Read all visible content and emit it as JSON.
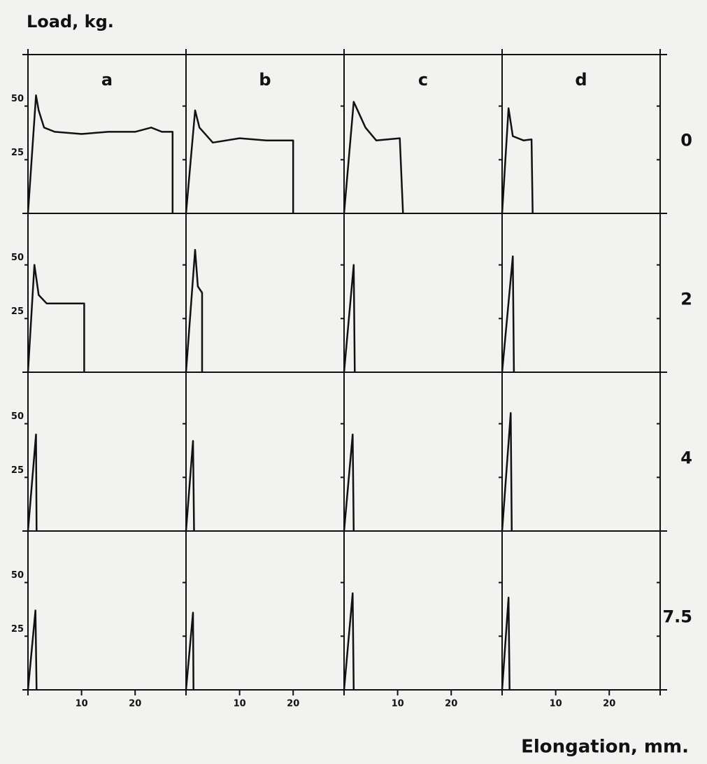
{
  "y_axis_label": "Load, kg.",
  "x_axis_label": "Elongation, mm.",
  "column_labels": [
    "a",
    "b",
    "c",
    "d"
  ],
  "row_labels": [
    "0",
    "2",
    "4",
    "7.5"
  ],
  "chart_data": [
    {
      "type": "line",
      "x": [
        0,
        1.5,
        2,
        3,
        5,
        10,
        15,
        20,
        23,
        25,
        27,
        27
      ],
      "values": [
        0,
        55,
        48,
        40,
        38,
        37,
        38,
        38,
        40,
        38,
        38,
        0
      ],
      "xlim": [
        0,
        29.5
      ],
      "ylim": [
        0,
        74
      ],
      "yticks": [
        25,
        50
      ],
      "color": "#111111"
    },
    {
      "type": "line",
      "x": [
        0,
        1.7,
        2.5,
        5,
        10,
        15,
        20,
        20
      ],
      "values": [
        0,
        48,
        40,
        33,
        35,
        34,
        34,
        0
      ],
      "xlim": [
        0,
        29.5
      ],
      "ylim": [
        0,
        74
      ],
      "yticks": [
        25,
        50
      ],
      "color": "#111111"
    },
    {
      "type": "line",
      "x": [
        0,
        1.8,
        4,
        6,
        10.4,
        11
      ],
      "values": [
        0,
        52,
        40,
        34,
        35,
        0
      ],
      "xlim": [
        0,
        29.5
      ],
      "ylim": [
        0,
        74
      ],
      "yticks": [
        25,
        50
      ],
      "color": "#111111"
    },
    {
      "type": "line",
      "x": [
        0,
        1.2,
        2,
        4,
        5.5,
        5.7
      ],
      "values": [
        0,
        49,
        36,
        34,
        34.5,
        0
      ],
      "xlim": [
        0,
        29.5
      ],
      "ylim": [
        0,
        74
      ],
      "yticks": [
        25,
        50
      ],
      "color": "#111111"
    },
    {
      "type": "line",
      "x": [
        0,
        1.2,
        2,
        3.5,
        10.5,
        10.5
      ],
      "values": [
        0,
        50,
        36,
        32,
        32,
        0
      ],
      "xlim": [
        0,
        29.5
      ],
      "ylim": [
        0,
        74
      ],
      "yticks": [
        25,
        50
      ],
      "color": "#111111"
    },
    {
      "type": "line",
      "x": [
        0,
        1.7,
        2.2,
        3,
        3
      ],
      "values": [
        0,
        57,
        40,
        37,
        0
      ],
      "xlim": [
        0,
        29.5
      ],
      "ylim": [
        0,
        74
      ],
      "yticks": [
        25,
        50
      ],
      "color": "#111111"
    },
    {
      "type": "line",
      "x": [
        0,
        1.8,
        2
      ],
      "values": [
        0,
        50,
        0
      ],
      "xlim": [
        0,
        29.5
      ],
      "ylim": [
        0,
        74
      ],
      "yticks": [
        25,
        50
      ],
      "color": "#111111"
    },
    {
      "type": "line",
      "x": [
        0,
        2,
        2.2
      ],
      "values": [
        0,
        54,
        0
      ],
      "xlim": [
        0,
        29.5
      ],
      "ylim": [
        0,
        74
      ],
      "yticks": [
        25,
        50
      ],
      "color": "#111111"
    },
    {
      "type": "line",
      "x": [
        0,
        1.5,
        1.6
      ],
      "values": [
        0,
        45,
        0
      ],
      "xlim": [
        0,
        29.5
      ],
      "ylim": [
        0,
        74
      ],
      "yticks": [
        25,
        50
      ],
      "color": "#111111"
    },
    {
      "type": "line",
      "x": [
        0,
        1.3,
        1.5
      ],
      "values": [
        0,
        42,
        0
      ],
      "xlim": [
        0,
        29.5
      ],
      "ylim": [
        0,
        74
      ],
      "yticks": [
        25,
        50
      ],
      "color": "#111111"
    },
    {
      "type": "line",
      "x": [
        0,
        1.6,
        1.8
      ],
      "values": [
        0,
        45,
        0
      ],
      "xlim": [
        0,
        29.5
      ],
      "ylim": [
        0,
        74
      ],
      "yticks": [
        25,
        50
      ],
      "color": "#111111"
    },
    {
      "type": "line",
      "x": [
        0,
        1.6,
        1.8
      ],
      "values": [
        0,
        55,
        0
      ],
      "xlim": [
        0,
        29.5
      ],
      "ylim": [
        0,
        74
      ],
      "yticks": [
        25,
        50
      ],
      "color": "#111111"
    },
    {
      "type": "line",
      "x": [
        0,
        1.4,
        1.6
      ],
      "values": [
        0,
        37,
        0
      ],
      "xlim": [
        0,
        29.5
      ],
      "ylim": [
        0,
        74
      ],
      "yticks": [
        25,
        50
      ],
      "xticks": [
        10,
        20
      ],
      "color": "#111111"
    },
    {
      "type": "line",
      "x": [
        0,
        1.3,
        1.4
      ],
      "values": [
        0,
        36,
        0
      ],
      "xlim": [
        0,
        29.5
      ],
      "ylim": [
        0,
        74
      ],
      "yticks": [
        25,
        50
      ],
      "xticks": [
        10,
        20
      ],
      "color": "#111111"
    },
    {
      "type": "line",
      "x": [
        0,
        1.6,
        1.8
      ],
      "values": [
        0,
        45,
        0
      ],
      "xlim": [
        0,
        29.5
      ],
      "ylim": [
        0,
        74
      ],
      "yticks": [
        25,
        50
      ],
      "xticks": [
        10,
        20
      ],
      "color": "#111111"
    },
    {
      "type": "line",
      "x": [
        0,
        1.2,
        1.4
      ],
      "values": [
        0,
        43,
        0
      ],
      "xlim": [
        0,
        29.5
      ],
      "ylim": [
        0,
        74
      ],
      "yticks": [
        25,
        50
      ],
      "xticks": [
        10,
        20
      ],
      "color": "#111111"
    }
  ]
}
